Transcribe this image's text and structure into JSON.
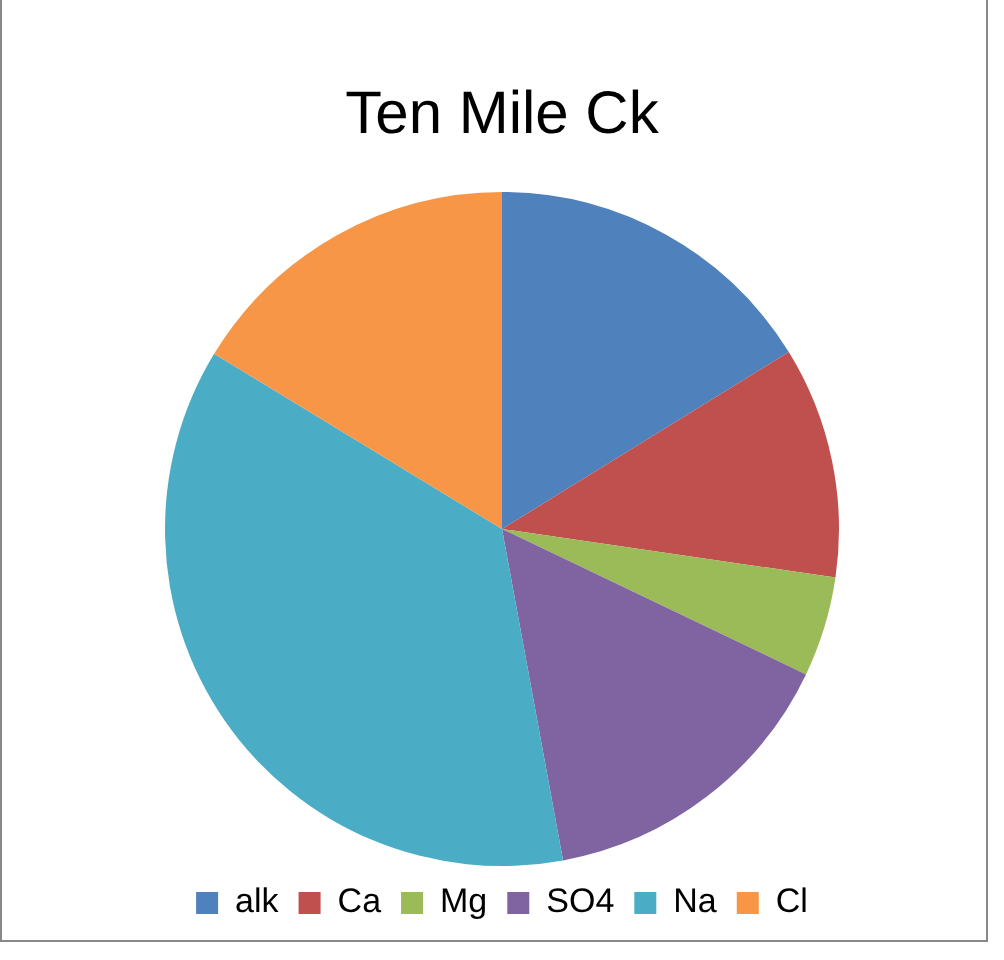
{
  "chart_data": {
    "type": "pie",
    "title": "Ten Mile Ck",
    "categories": [
      "alk",
      "Ca",
      "Mg",
      "SO4",
      "Na",
      "Cl"
    ],
    "values": [
      16.2,
      11.1,
      4.8,
      15.0,
      36.6,
      16.3
    ],
    "colors": [
      "#4f81bd",
      "#c0504d",
      "#9bbb59",
      "#8064a2",
      "#4bacc6",
      "#f79646"
    ],
    "legend": "bottom"
  }
}
